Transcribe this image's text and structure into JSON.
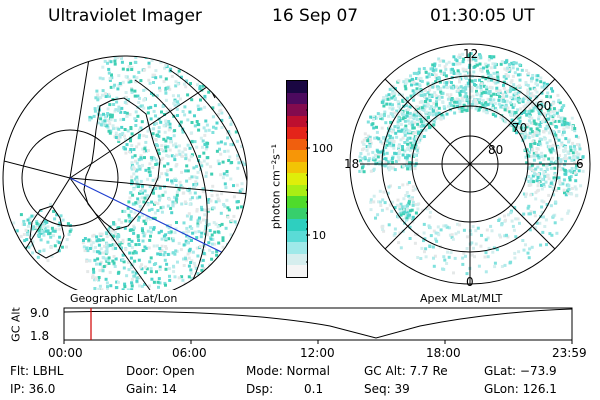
{
  "header": {
    "instrument": "Ultraviolet Imager",
    "date": "16 Sep 07",
    "time": "01:30:05 UT"
  },
  "left_map": {
    "caption": "Geographic Lat/Lon"
  },
  "right_map": {
    "caption": "Apex MLat/MLT",
    "mlt_labels": {
      "top": "12",
      "bottom": "0",
      "left": "18",
      "right": "6"
    },
    "lat_labels": [
      "60",
      "70",
      "80"
    ]
  },
  "colorbar": {
    "unit": "photon cm⁻²s⁻¹",
    "ticks": [
      "100",
      "10"
    ],
    "colors": [
      "#f5f5f5",
      "#d6eeee",
      "#9fe9e9",
      "#5adbd6",
      "#2ecfbf",
      "#37cf6c",
      "#4fdb2b",
      "#a9ee14",
      "#dfee0a",
      "#f2c405",
      "#f79607",
      "#f05f0e",
      "#e4241a",
      "#bd0f2f",
      "#830b4e",
      "#4c0a5e",
      "#1a0742"
    ]
  },
  "timeline": {
    "ylabel": "GC Alt",
    "y_max_label": "9.0",
    "y_min_label": "1.8",
    "ticks": [
      "00:00",
      "06:00",
      "12:00",
      "18:00",
      "23:59"
    ],
    "marker_time": "01:30:05"
  },
  "info": {
    "flt": "Flt: LBHL",
    "ip": "IP: 36.0",
    "door": "Door: Open",
    "gain": "Gain: 14",
    "mode": "Mode: Normal",
    "dsp": "Dsp:",
    "dsp_val": "0.1",
    "gc_alt": "GC Alt: 7.7 Re",
    "seq": "Seq: 39",
    "glat": "GLat: −73.9",
    "glon": "GLon: 126.1"
  }
}
